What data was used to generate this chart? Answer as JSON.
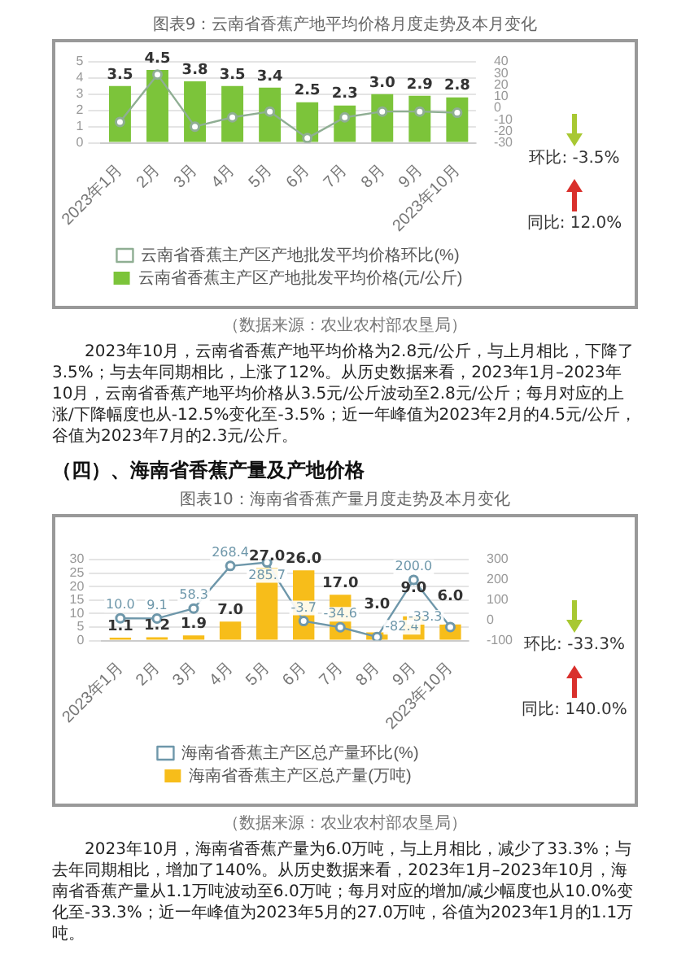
{
  "chart_data": [
    {
      "type": "bar",
      "title": "图表9：云南省香蕉产地平均价格月度走势及本月变化",
      "categories": [
        "2023年1月",
        "2月",
        "3月",
        "4月",
        "5月",
        "6月",
        "7月",
        "8月",
        "9月",
        "2023年10月"
      ],
      "series": [
        {
          "name": "云南省香蕉主产区产地批发平均价格(元/公斤)",
          "color": "#7cc43a",
          "values": [
            3.5,
            4.5,
            3.8,
            3.5,
            3.4,
            2.5,
            2.3,
            3.0,
            2.9,
            2.8
          ],
          "value_labels": [
            "3.5",
            "4.5",
            "3.8",
            "3.5",
            "3.4",
            "2.5",
            "2.3",
            "3.0",
            "2.9",
            "2.8"
          ]
        },
        {
          "name": "云南省香蕉主产区产地批发平均价格环比(%)",
          "type": "line",
          "axis": "y2",
          "color": "#8fae93",
          "marker": "circle",
          "values": [
            -12,
            29,
            -16,
            -8,
            -3,
            -26,
            -8,
            -3,
            -3,
            -4
          ]
        }
      ],
      "ylim": [
        0,
        5
      ],
      "yticks": [
        0,
        1,
        2,
        3,
        4,
        5
      ],
      "y2lim": [
        -30,
        40
      ],
      "y2ticks": [
        -30,
        -20,
        -10,
        0,
        10,
        20,
        30,
        40
      ],
      "grid": "y",
      "legend": "bottom",
      "annotations": [
        "环比: -3.5%",
        "同比: 12.0%",
        "（数据来源：农业农村部农垦局）",
        "2023年10月，云南省香蕉产地平均价格为2.8元/公斤，与上月相比，下降了3.5%；与去年同期相比，上涨了12%。从历史数据来看，2023年1月–2023年10月，云南省香蕉产地平均价格从3.5元/公斤波动至2.8元/公斤；每月对应的上涨/下降幅度也从-12.5%变化至-3.5%；近一年峰值为2023年2月的4.5元/公斤，谷值为2023年7月的2.3元/公斤。"
      ]
    },
    {
      "type": "bar",
      "subtitle": "（四）、海南省香蕉产量及产地价格",
      "title": "图表10：海南省香蕉产量月度走势及本月变化",
      "categories": [
        "2023年1月",
        "2月",
        "3月",
        "4月",
        "5月",
        "6月",
        "7月",
        "8月",
        "9月",
        "2023年10月"
      ],
      "series": [
        {
          "name": "海南省香蕉主产区总产量(万吨)",
          "color": "#f7bd1a",
          "values": [
            1.1,
            1.2,
            1.9,
            7.0,
            27.0,
            26.0,
            17.0,
            3.0,
            9.0,
            6.0
          ],
          "value_labels": [
            "1.1",
            "1.2",
            "1.9",
            "7.0",
            "27.0",
            "26.0",
            "17.0",
            "3.0",
            "9.0",
            "6.0"
          ]
        },
        {
          "name": "海南省香蕉主产区总产量环比(%)",
          "type": "line",
          "axis": "y2",
          "color": "#6e97aa",
          "marker": "circle",
          "values": [
            10.0,
            9.1,
            58.3,
            268.4,
            285.7,
            -3.7,
            -34.6,
            -82.4,
            200.0,
            -33.3
          ],
          "value_labels": [
            "10.0",
            "9.1",
            "58.3",
            "268.4",
            "285.7",
            "-3.7",
            "-34.6",
            "-82.4",
            "200.0",
            "-33.3"
          ]
        }
      ],
      "ylim": [
        0,
        30
      ],
      "yticks": [
        0,
        5,
        10,
        15,
        20,
        25,
        30
      ],
      "y2lim": [
        -100,
        300
      ],
      "y2ticks": [
        -100,
        0,
        100,
        200,
        300
      ],
      "grid": "y",
      "legend": "bottom",
      "annotations": [
        "环比: -33.3%",
        "同比: 140.0%",
        "（数据来源：农业农村部农垦局）",
        "2023年10月，海南省香蕉产量为6.0万吨，与上月相比，减少了33.3%；与去年同期相比，增加了140%。从历史数据来看，2023年1月–2023年10月，海南省香蕉产量从1.1万吨波动至6.0万吨；每月对应的增加/减少幅度也从10.0%变化至-33.3%；近一年峰值为2023年5月的27.0万吨，谷值为2023年1月的1.1万吨。"
      ]
    }
  ]
}
